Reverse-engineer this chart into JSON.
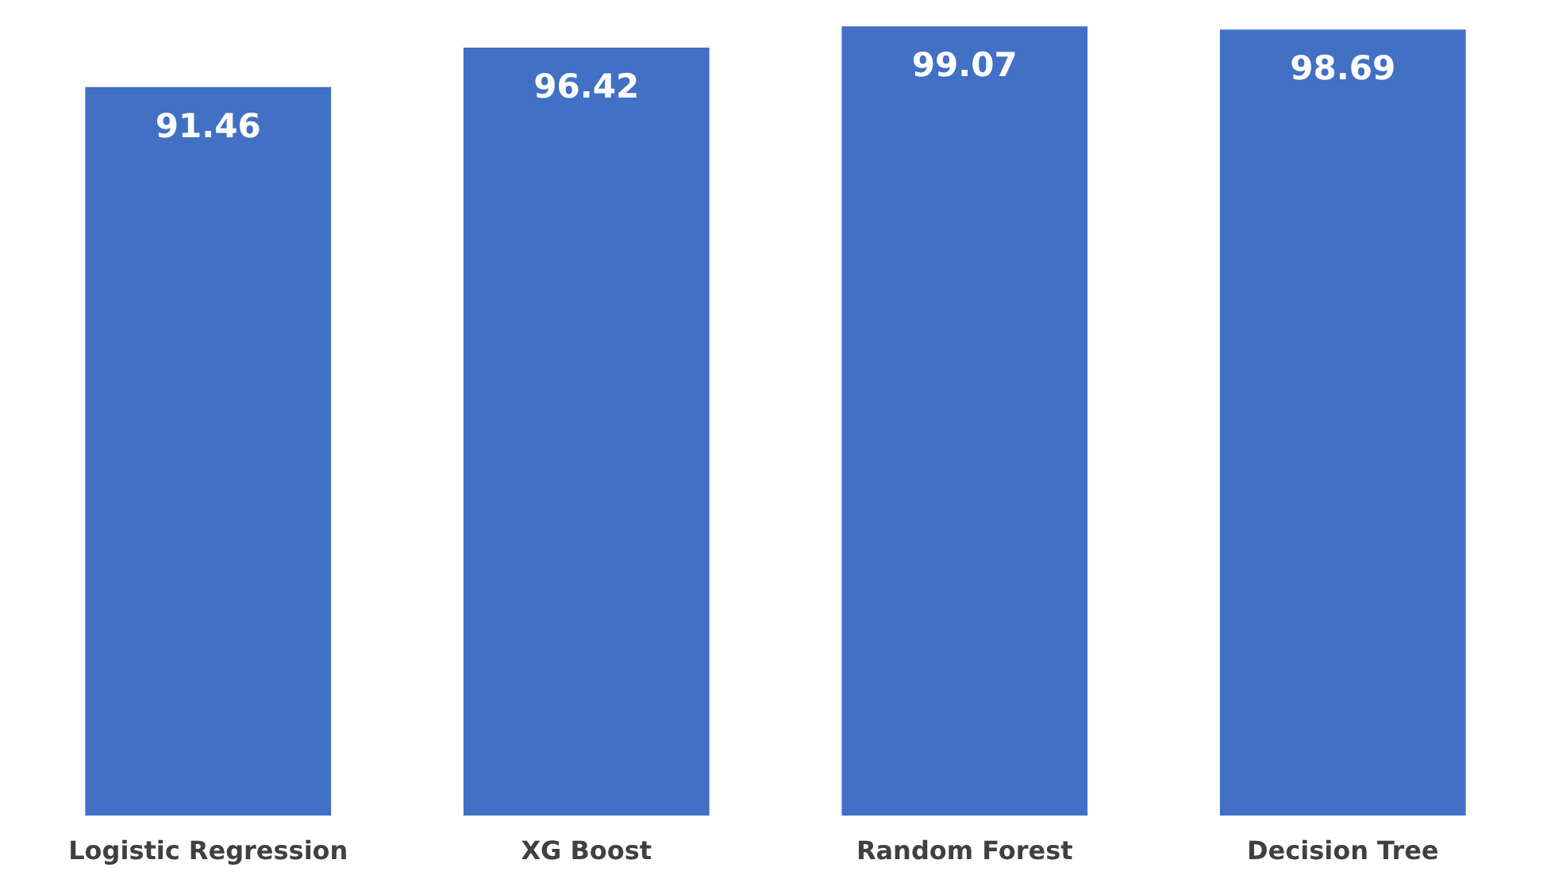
{
  "chart_data": {
    "type": "bar",
    "categories": [
      "Logistic Regression",
      "XG Boost",
      "Random Forest",
      "Decision Tree"
    ],
    "values": [
      91.46,
      96.42,
      99.07,
      98.69
    ],
    "color": "#4170c4",
    "data_labels": true
  }
}
